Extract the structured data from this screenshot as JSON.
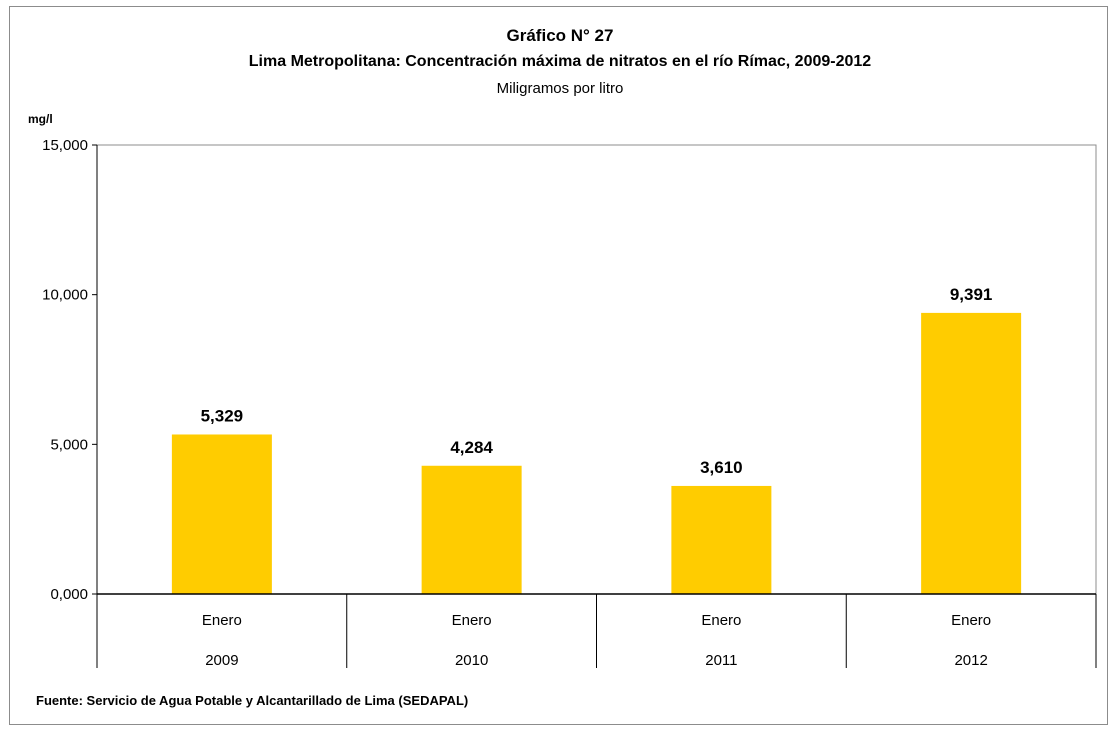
{
  "chart_data": {
    "type": "bar",
    "title": "Gráfico N° 27",
    "subtitle": "Lima Metropolitana: Concentración máxima de nitratos en el río Rímac, 2009-2012",
    "units_label": "Miligramos por litro",
    "ylabel": "mg/l",
    "xlabel": "",
    "categories": [
      {
        "month": "Enero",
        "year": "2009"
      },
      {
        "month": "Enero",
        "year": "2010"
      },
      {
        "month": "Enero",
        "year": "2011"
      },
      {
        "month": "Enero",
        "year": "2012"
      }
    ],
    "values": [
      5.329,
      4.284,
      3.61,
      9.391
    ],
    "value_labels": [
      "5,329",
      "4,284",
      "3,610",
      "9,391"
    ],
    "ylim": [
      0,
      15
    ],
    "yticks": [
      0,
      5,
      10,
      15
    ],
    "ytick_labels": [
      "0,000",
      "5,000",
      "10,000",
      "15,000"
    ],
    "grid": false,
    "legend": "none",
    "bar_color": "#ffcc00",
    "source": "Fuente: Servicio de Agua Potable y Alcantarillado de Lima (SEDAPAL)"
  }
}
